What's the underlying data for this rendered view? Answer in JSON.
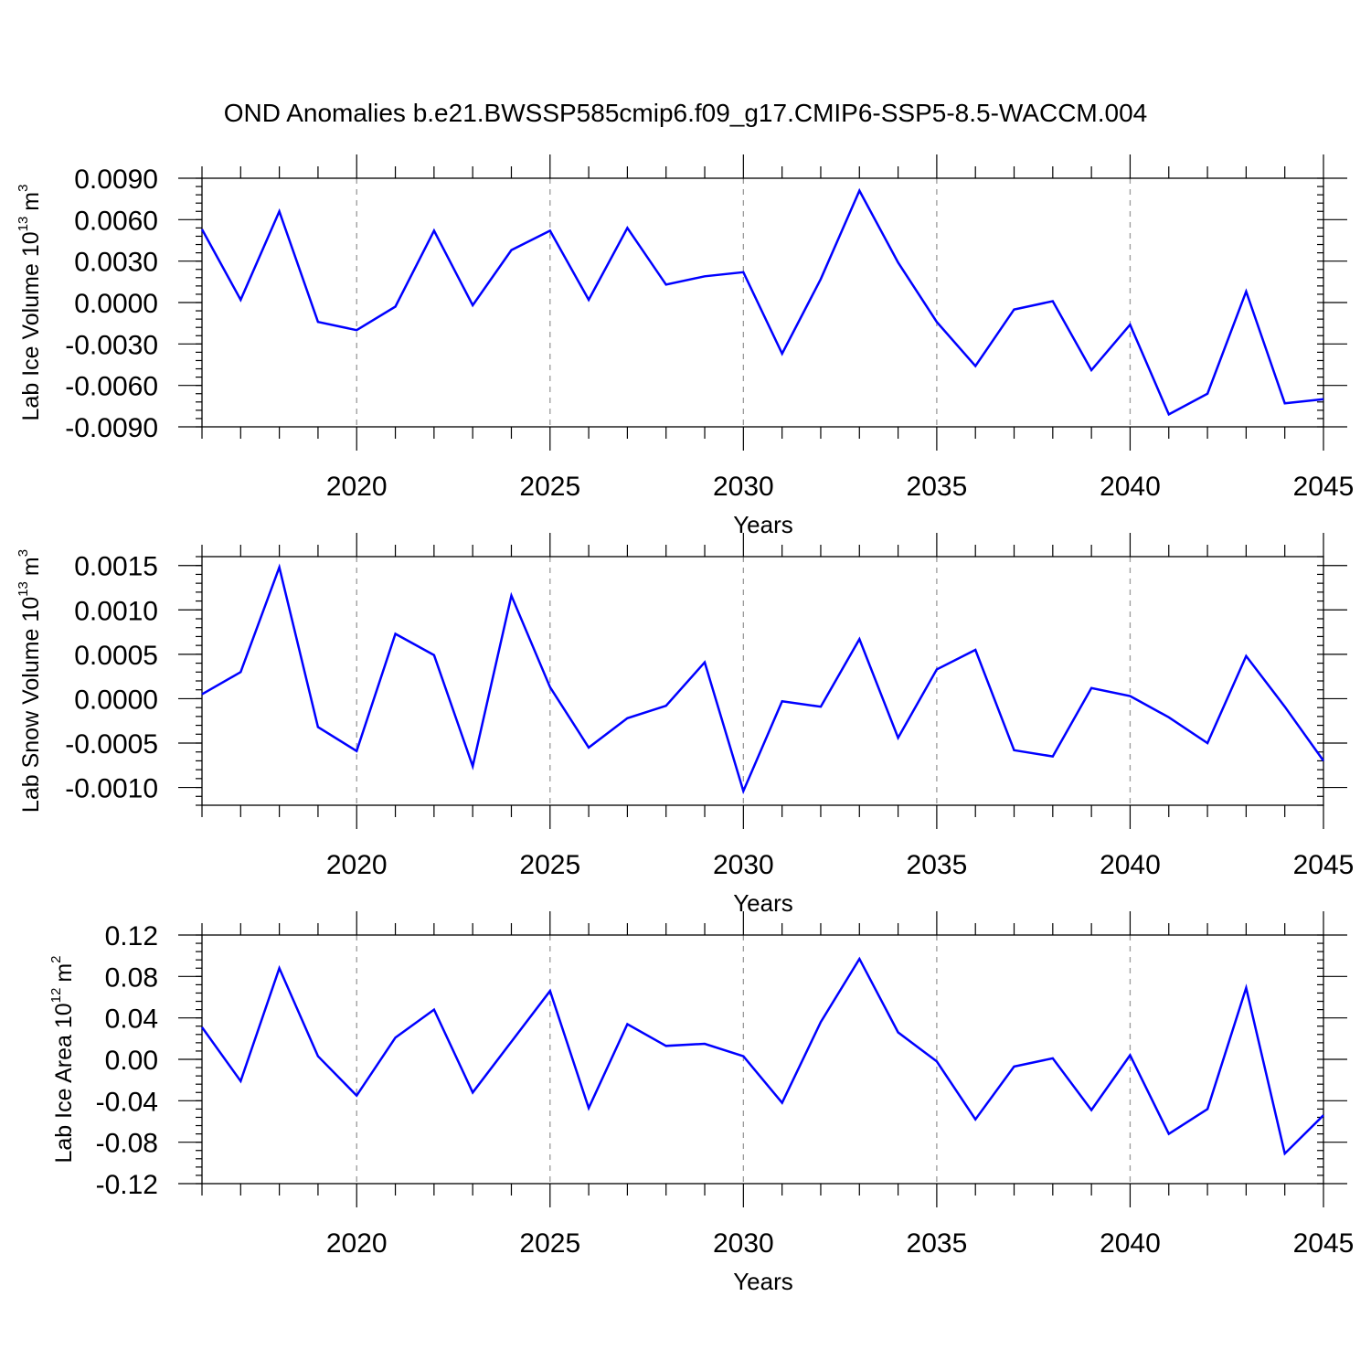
{
  "figure": {
    "title": "OND Anomalies b.e21.BWSSP585cmip6.f09_g17.CMIP6-SSP5-8.5-WACCM.004"
  },
  "colors": {
    "series_line": "#0000ff",
    "grid": "#9a9a9a",
    "axes": "#000000"
  },
  "chart_data": [
    {
      "type": "line",
      "xlabel": "Years",
      "ylabel": {
        "main": "Lab Ice Volume 10",
        "exponent": "13",
        "unit": "m",
        "unit_exponent": "3"
      },
      "xlim": [
        2016,
        2045
      ],
      "ylim": [
        -0.009,
        0.009
      ],
      "x_ticks": [
        "2020",
        "2025",
        "2030",
        "2035",
        "2040",
        "2045"
      ],
      "y_ticks": [
        "0.0090",
        "0.0060",
        "0.0030",
        "0.0000",
        "-0.0030",
        "-0.0060",
        "-0.0090"
      ],
      "grid": "vertical dashed at labeled years",
      "x": [
        2016,
        2017,
        2018,
        2019,
        2020,
        2021,
        2022,
        2023,
        2024,
        2025,
        2026,
        2027,
        2028,
        2029,
        2030,
        2031,
        2032,
        2033,
        2034,
        2035,
        2036,
        2037,
        2038,
        2039,
        2040,
        2041,
        2042,
        2043,
        2044,
        2045
      ],
      "values": [
        0.0053,
        0.0002,
        0.0066,
        -0.0014,
        -0.002,
        -0.0003,
        0.0052,
        -0.0002,
        0.0038,
        0.0052,
        0.0002,
        0.0054,
        0.0013,
        0.0019,
        0.0022,
        -0.0037,
        0.0017,
        0.0081,
        0.0029,
        -0.0014,
        -0.0046,
        -0.0005,
        0.0001,
        -0.0049,
        -0.0016,
        -0.0081,
        -0.0066,
        0.0008,
        -0.0073,
        -0.007
      ]
    },
    {
      "type": "line",
      "xlabel": "Years",
      "ylabel": {
        "main": "Lab Snow Volume 10",
        "exponent": "13",
        "unit": "m",
        "unit_exponent": "3"
      },
      "xlim": [
        2016,
        2045
      ],
      "ylim": [
        -0.0012,
        0.0016
      ],
      "x_ticks": [
        "2020",
        "2025",
        "2030",
        "2035",
        "2040",
        "2045"
      ],
      "y_ticks": [
        "0.0015",
        "0.0010",
        "0.0005",
        "0.0000",
        "-0.0005",
        "-0.0010"
      ],
      "grid": "vertical dashed at labeled years",
      "x": [
        2016,
        2017,
        2018,
        2019,
        2020,
        2021,
        2022,
        2023,
        2024,
        2025,
        2026,
        2027,
        2028,
        2029,
        2030,
        2031,
        2032,
        2033,
        2034,
        2035,
        2036,
        2037,
        2038,
        2039,
        2040,
        2041,
        2042,
        2043,
        2044,
        2045
      ],
      "values": [
        5e-05,
        0.0003,
        0.00148,
        -0.00032,
        -0.00059,
        0.00073,
        0.00049,
        -0.00076,
        0.00116,
        0.00013,
        -0.00055,
        -0.00022,
        -8e-05,
        0.00041,
        -0.00104,
        -3e-05,
        -9e-05,
        0.00067,
        -0.00044,
        0.00033,
        0.00055,
        -0.00058,
        -0.00065,
        0.00012,
        3e-05,
        -0.00021,
        -0.0005,
        0.00048,
        -9e-05,
        -0.0007
      ]
    },
    {
      "type": "line",
      "xlabel": "Years",
      "ylabel": {
        "main": "Lab Ice Area 10",
        "exponent": "12",
        "unit": "m",
        "unit_exponent": "2"
      },
      "xlim": [
        2016,
        2045
      ],
      "ylim": [
        -0.12,
        0.12
      ],
      "x_ticks": [
        "2020",
        "2025",
        "2030",
        "2035",
        "2040",
        "2045"
      ],
      "y_ticks": [
        "0.12",
        "0.08",
        "0.04",
        "0.00",
        "-0.04",
        "-0.08",
        "-0.12"
      ],
      "grid": "vertical dashed at labeled years",
      "x": [
        2016,
        2017,
        2018,
        2019,
        2020,
        2021,
        2022,
        2023,
        2024,
        2025,
        2026,
        2027,
        2028,
        2029,
        2030,
        2031,
        2032,
        2033,
        2034,
        2035,
        2036,
        2037,
        2038,
        2039,
        2040,
        2041,
        2042,
        2043,
        2044,
        2045
      ],
      "values": [
        0.031,
        -0.021,
        0.088,
        0.003,
        -0.035,
        0.021,
        0.048,
        -0.032,
        0.017,
        0.066,
        -0.047,
        0.034,
        0.013,
        0.015,
        0.003,
        -0.042,
        0.036,
        0.097,
        0.026,
        -0.002,
        -0.058,
        -0.007,
        0.001,
        -0.049,
        0.004,
        -0.072,
        -0.048,
        0.069,
        -0.091,
        -0.054
      ]
    }
  ]
}
